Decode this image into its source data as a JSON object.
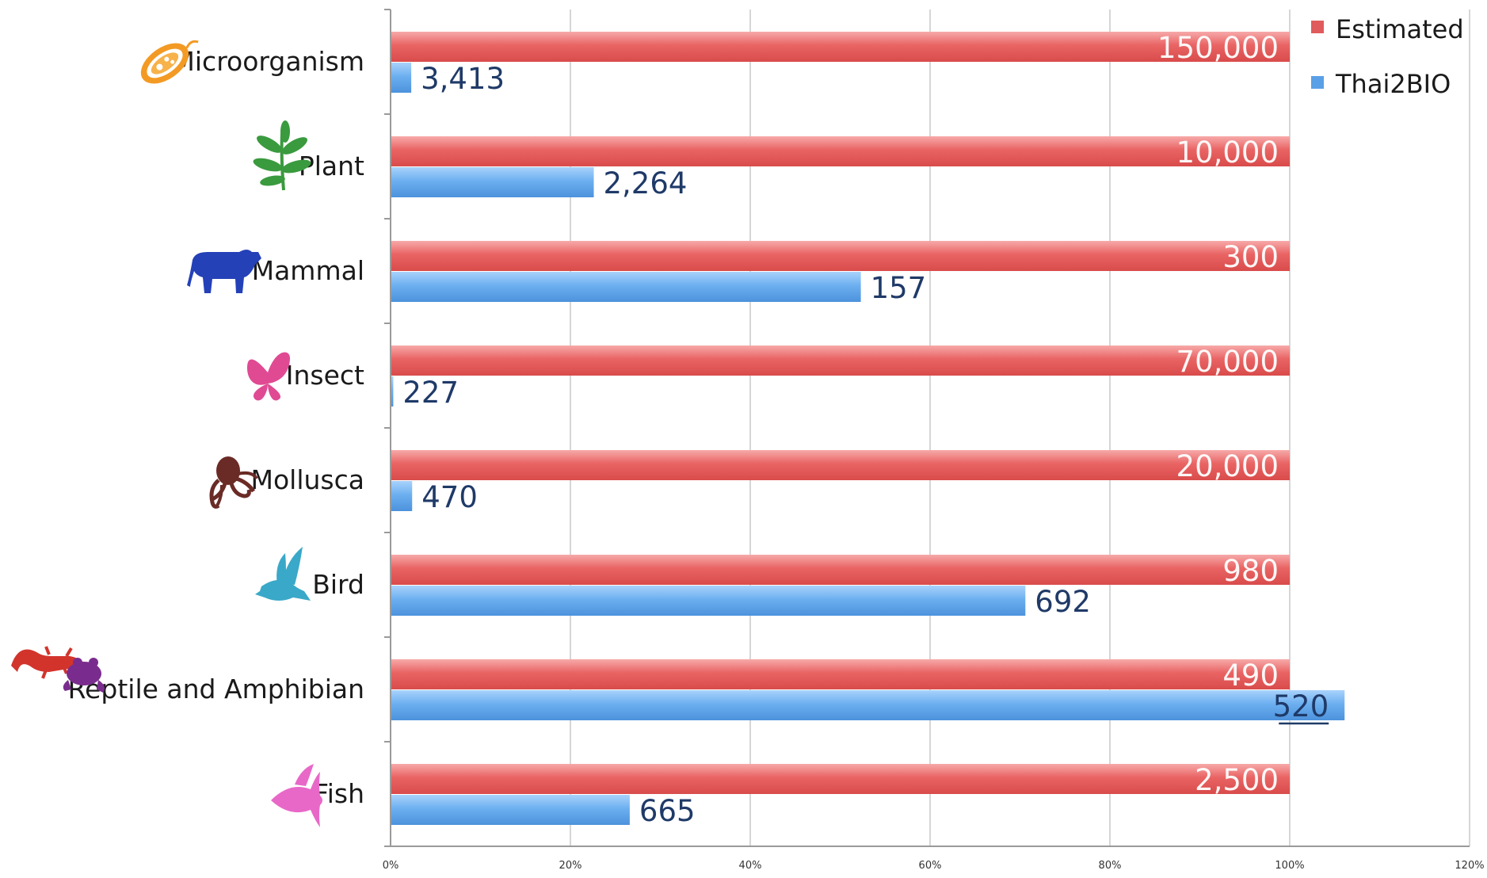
{
  "chart_data": {
    "type": "bar",
    "orientation": "horizontal",
    "categories": [
      "Microorganism",
      "Plant",
      "Mammal",
      "Insect",
      "Mollusca",
      "Bird",
      "Reptile and Amphibian",
      "Fish"
    ],
    "icons": [
      "bacterium-icon",
      "plant-sprig-icon",
      "cow-icon",
      "butterfly-icon",
      "octopus-icon",
      "bird-icon",
      "lizard-frog-icon",
      "angelfish-icon"
    ],
    "series": [
      {
        "name": "Estimated",
        "color": "#e05b5b",
        "values_percent": [
          100,
          100,
          100,
          100,
          100,
          100,
          100,
          100
        ],
        "labels": [
          "150,000",
          "10,000",
          "300",
          "70,000",
          "20,000",
          "980",
          "490",
          "2,500"
        ],
        "label_color": "#ffffff"
      },
      {
        "name": "Thai2BIO",
        "color": "#5aa0e6",
        "values_percent": [
          2.3,
          22.6,
          52.3,
          0.3,
          2.4,
          70.6,
          106.1,
          26.6
        ],
        "labels": [
          "3,413",
          "2,264",
          "157",
          "227",
          "470",
          "692",
          "520",
          "665"
        ],
        "label_color": "#1f3a68"
      }
    ],
    "xlim": [
      0,
      120
    ],
    "xticks": [
      "0%",
      "20%",
      "40%",
      "60%",
      "80%",
      "100%",
      "120%"
    ],
    "grid": true,
    "legend_position": "top-right"
  }
}
